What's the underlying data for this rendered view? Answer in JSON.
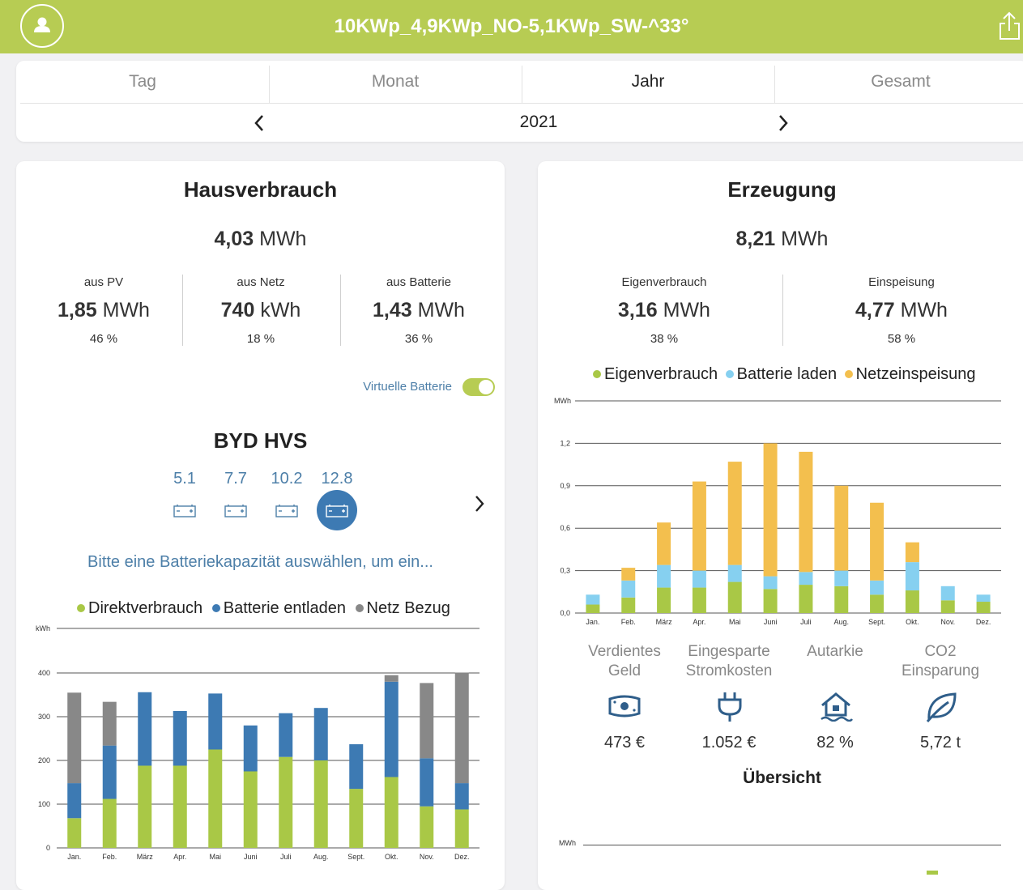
{
  "header": {
    "title": "10KWp_4,9KWp_NO-5,1KWp_SW-^33°",
    "avatar_icon": "user-icon",
    "share_icon": "share-icon"
  },
  "tabs": [
    {
      "label": "Tag",
      "active": false
    },
    {
      "label": "Monat",
      "active": false
    },
    {
      "label": "Jahr",
      "active": true
    },
    {
      "label": "Gesamt",
      "active": false
    }
  ],
  "period": {
    "label": "2021"
  },
  "colors": {
    "brand": "#b7cc53",
    "direkt": "#a9c846",
    "batterie_entladen": "#3d7ab3",
    "netz": "#888888",
    "eigen": "#a9c846",
    "batterie_laden": "#86d0f0",
    "netzeinspeisung": "#f3bf4e",
    "link": "#4d7fa8"
  },
  "hausverbrauch": {
    "title": "Hausverbrauch",
    "total_value": "4,03",
    "total_unit": "MWh",
    "stats": [
      {
        "label": "aus PV",
        "value": "1,85",
        "unit": "MWh",
        "percent": "46 %"
      },
      {
        "label": "aus Netz",
        "value": "740",
        "unit": "kWh",
        "percent": "18 %"
      },
      {
        "label": "aus Batterie",
        "value": "1,43",
        "unit": "MWh",
        "percent": "36 %"
      }
    ],
    "virtual_battery": {
      "label": "Virtuelle Batterie",
      "on": true
    },
    "battery": {
      "name": "BYD HVS",
      "capacities": [
        "5.1",
        "7.7",
        "10.2",
        "12.8"
      ],
      "selected_index": 3,
      "hint": "Bitte eine Batteriekapazität auswählen, um ein..."
    },
    "legend": [
      "Direktverbrauch",
      "Batterie entladen",
      "Netz Bezug"
    ]
  },
  "erzeugung": {
    "title": "Erzeugung",
    "total_value": "8,21",
    "total_unit": "MWh",
    "stats": [
      {
        "label": "Eigenverbrauch",
        "value": "3,16",
        "unit": "MWh",
        "percent": "38 %"
      },
      {
        "label": "Einspeisung",
        "value": "4,77",
        "unit": "MWh",
        "percent": "58 %"
      }
    ],
    "legend": [
      "Eigenverbrauch",
      "Batterie laden",
      "Netzeinspeisung"
    ]
  },
  "summary": {
    "title": "Übersicht",
    "items": [
      {
        "label_line1": "Verdientes",
        "label_line2": "Geld",
        "icon": "money-icon",
        "value": "473 €"
      },
      {
        "label_line1": "Eingesparte",
        "label_line2": "Stromkosten",
        "icon": "plug-icon",
        "value": "1.052 €"
      },
      {
        "label_line1": "Autarkie",
        "label_line2": "",
        "icon": "house-icon",
        "value": "82 %"
      },
      {
        "label_line1": "CO2",
        "label_line2": "Einsparung",
        "icon": "leaf-icon",
        "value": "5,72 t"
      }
    ],
    "next_chart_unit": "MWh"
  },
  "chart_data": [
    {
      "type": "bar",
      "stacked": true,
      "ylabel": "kWh",
      "ylim": [
        0,
        400
      ],
      "yticks": [
        "0",
        "100",
        "200",
        "300",
        "400"
      ],
      "categories": [
        "Jan.",
        "Feb.",
        "März",
        "Apr.",
        "Mai",
        "Juni",
        "Juli",
        "Aug.",
        "Sept.",
        "Okt.",
        "Nov.",
        "Dez."
      ],
      "series": [
        {
          "name": "Direktverbrauch",
          "color": "#a9c846",
          "values": [
            68,
            112,
            188,
            188,
            225,
            175,
            208,
            200,
            135,
            162,
            95,
            88
          ]
        },
        {
          "name": "Batterie entladen",
          "color": "#3d7ab3",
          "values": [
            80,
            122,
            168,
            125,
            128,
            105,
            100,
            120,
            102,
            218,
            110,
            60
          ]
        },
        {
          "name": "Netz Bezug",
          "color": "#888888",
          "values": [
            207,
            100,
            0,
            0,
            0,
            0,
            0,
            0,
            0,
            15,
            172,
            253
          ]
        }
      ]
    },
    {
      "type": "bar",
      "stacked": true,
      "ylabel": "MWh",
      "ylim": [
        0,
        1.5
      ],
      "yticks": [
        "0,0",
        "0,3",
        "0,6",
        "0,9",
        "1,2"
      ],
      "categories": [
        "Jan.",
        "Feb.",
        "März",
        "Apr.",
        "Mai",
        "Juni",
        "Juli",
        "Aug.",
        "Sept.",
        "Okt.",
        "Nov.",
        "Dez."
      ],
      "series": [
        {
          "name": "Eigenverbrauch",
          "color": "#a9c846",
          "values": [
            0.06,
            0.11,
            0.18,
            0.18,
            0.22,
            0.17,
            0.2,
            0.19,
            0.13,
            0.16,
            0.09,
            0.08
          ]
        },
        {
          "name": "Batterie laden",
          "color": "#86d0f0",
          "values": [
            0.07,
            0.12,
            0.16,
            0.12,
            0.12,
            0.09,
            0.09,
            0.11,
            0.1,
            0.2,
            0.1,
            0.05
          ]
        },
        {
          "name": "Netzeinspeisung",
          "color": "#f3bf4e",
          "values": [
            0,
            0.09,
            0.3,
            0.63,
            0.73,
            0.94,
            0.85,
            0.6,
            0.55,
            0.14,
            0,
            0
          ]
        }
      ]
    }
  ]
}
